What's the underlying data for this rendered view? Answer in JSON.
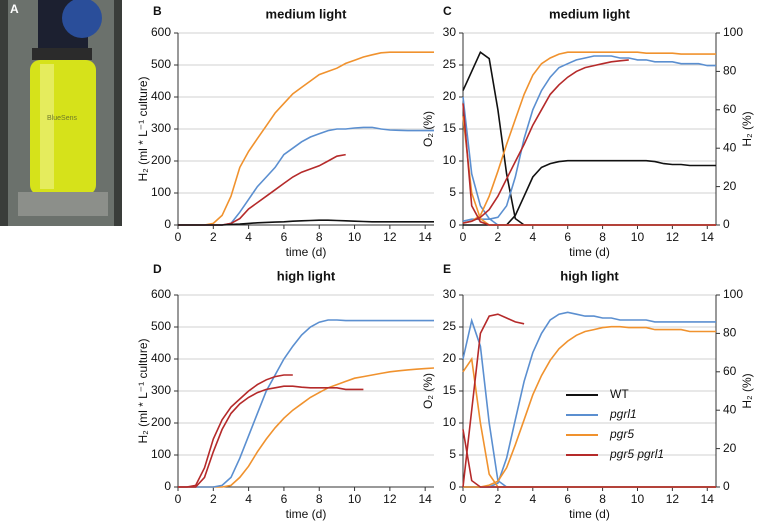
{
  "panel_a": {
    "label": "A",
    "photo_text": "BlueSens"
  },
  "chart_data": [
    {
      "type": "line",
      "label": "B",
      "title": "medium light",
      "xlabel": "time (d)",
      "ylabel": "H₂ (ml * L⁻¹ culture)",
      "x": [
        0,
        0.5,
        1,
        1.5,
        2,
        2.5,
        3,
        3.5,
        4,
        4.5,
        5,
        5.5,
        6,
        6.5,
        7,
        7.5,
        8,
        8.5,
        9,
        9.5,
        10,
        10.5,
        11,
        11.5,
        12,
        12.5,
        13,
        13.5,
        14,
        14.5
      ],
      "xlim": [
        0,
        14.5
      ],
      "xticks": [
        0,
        2,
        4,
        6,
        8,
        10,
        12,
        14
      ],
      "ylim": [
        0,
        600
      ],
      "yticks": [
        0,
        100,
        200,
        300,
        400,
        500,
        600
      ],
      "grid": true,
      "series": [
        {
          "color": "#f0922e",
          "values": [
            0,
            0,
            0,
            0,
            5,
            30,
            90,
            180,
            230,
            270,
            310,
            350,
            380,
            410,
            430,
            450,
            470,
            480,
            490,
            505,
            515,
            525,
            532,
            538,
            540,
            540,
            540,
            540,
            540,
            540
          ]
        },
        {
          "color": "#5b8fd0",
          "values": [
            0,
            0,
            0,
            0,
            0,
            0,
            5,
            40,
            80,
            120,
            150,
            180,
            220,
            240,
            260,
            275,
            285,
            295,
            300,
            300,
            303,
            305,
            305,
            300,
            297,
            296,
            295,
            295,
            295,
            295
          ]
        },
        {
          "color": "#b52a2a",
          "values": [
            0,
            0,
            0,
            0,
            0,
            0,
            5,
            20,
            50,
            70,
            90,
            110,
            130,
            150,
            165,
            175,
            185,
            200,
            215,
            220,
            null,
            null,
            null,
            null,
            null,
            null,
            null,
            null,
            null,
            null
          ]
        },
        {
          "color": "#111111",
          "values": [
            0,
            0,
            0,
            0,
            0,
            0,
            2,
            3,
            5,
            7,
            8,
            9,
            10,
            12,
            13,
            14,
            15,
            15,
            14,
            13,
            12,
            11,
            10,
            10,
            10,
            10,
            10,
            10,
            10,
            10
          ]
        }
      ]
    },
    {
      "type": "line",
      "label": "C",
      "title": "medium light",
      "xlabel": "time (d)",
      "ylabel": "O₂ (%)",
      "y2label": "H₂ (%)",
      "x": [
        0,
        0.5,
        1,
        1.5,
        2,
        2.5,
        3,
        3.5,
        4,
        4.5,
        5,
        5.5,
        6,
        6.5,
        7,
        7.5,
        8,
        8.5,
        9,
        9.5,
        10,
        10.5,
        11,
        11.5,
        12,
        12.5,
        13,
        13.5,
        14,
        14.5
      ],
      "xlim": [
        0,
        14.5
      ],
      "xticks": [
        0,
        2,
        4,
        6,
        8,
        10,
        12,
        14
      ],
      "ylim": [
        0,
        30
      ],
      "yticks": [
        0,
        5,
        10,
        15,
        20,
        25,
        30
      ],
      "y2lim": [
        0,
        100
      ],
      "y2ticks": [
        0,
        20,
        40,
        60,
        80,
        100
      ],
      "grid": true,
      "series": [
        {
          "color": "#111111",
          "values": [
            21,
            24,
            27,
            26,
            18,
            8,
            1,
            0,
            0,
            0,
            0,
            0,
            0,
            0,
            0,
            0,
            0,
            0,
            0,
            0,
            0,
            0,
            0,
            0,
            0,
            0,
            0,
            0,
            0,
            0
          ]
        },
        {
          "color": "#111111",
          "axis": "y2",
          "values": [
            0,
            0,
            0,
            0,
            0,
            0,
            5,
            15,
            25,
            30,
            32,
            33,
            33.5,
            33.5,
            33.5,
            33.5,
            33.5,
            33.5,
            33.5,
            33.5,
            33.5,
            33.5,
            33,
            32,
            31.5,
            31.5,
            31,
            31,
            31,
            31
          ]
        },
        {
          "color": "#5b8fd0",
          "values": [
            20,
            8,
            3,
            1,
            0,
            0,
            0,
            0,
            0,
            0,
            0,
            0,
            0,
            0,
            0,
            0,
            0,
            0,
            0,
            0,
            0,
            0,
            0,
            0,
            0,
            0,
            0,
            0,
            0,
            0
          ]
        },
        {
          "color": "#5b8fd0",
          "axis": "y2",
          "values": [
            2,
            3,
            3,
            3,
            4,
            10,
            25,
            45,
            60,
            70,
            77,
            82,
            84,
            86,
            87,
            88,
            88,
            88,
            87,
            87,
            86,
            86,
            85,
            85,
            85,
            84,
            84,
            84,
            83,
            83
          ]
        },
        {
          "color": "#f0922e",
          "values": [
            17,
            5,
            1,
            0,
            0,
            0,
            0,
            0,
            0,
            0,
            0,
            0,
            0,
            0,
            0,
            0,
            0,
            0,
            0,
            0,
            0,
            0,
            0,
            0,
            0,
            0,
            0,
            0,
            0,
            0
          ]
        },
        {
          "color": "#f0922e",
          "axis": "y2",
          "values": [
            1,
            2,
            5,
            15,
            28,
            42,
            55,
            68,
            78,
            84,
            87,
            89,
            90,
            90,
            90,
            90,
            90,
            90,
            90,
            90,
            90,
            89.5,
            89.5,
            89.5,
            89.5,
            89,
            89,
            89,
            89,
            89
          ]
        },
        {
          "color": "#b52a2a",
          "values": [
            19,
            3,
            0.5,
            0,
            0,
            0,
            0,
            0,
            0,
            0,
            0,
            0,
            0,
            0,
            0,
            0,
            0,
            0,
            0,
            0,
            0,
            0,
            0,
            0,
            0,
            0,
            0,
            0,
            0,
            0
          ]
        },
        {
          "color": "#b52a2a",
          "axis": "y2",
          "values": [
            1,
            2,
            4,
            8,
            15,
            24,
            33,
            42,
            52,
            60,
            68,
            73,
            77,
            80,
            82,
            83,
            84,
            85,
            85.5,
            86,
            null,
            null,
            null,
            null,
            null,
            null,
            null,
            null,
            null,
            null
          ]
        }
      ]
    },
    {
      "type": "line",
      "label": "D",
      "title": "high light",
      "xlabel": "time (d)",
      "ylabel": "H₂ (ml * L⁻¹ culture)",
      "x": [
        0,
        0.5,
        1,
        1.5,
        2,
        2.5,
        3,
        3.5,
        4,
        4.5,
        5,
        5.5,
        6,
        6.5,
        7,
        7.5,
        8,
        8.5,
        9,
        9.5,
        10,
        10.5,
        11,
        11.5,
        12,
        12.5,
        13,
        13.5,
        14,
        14.5
      ],
      "xlim": [
        0,
        14.5
      ],
      "xticks": [
        0,
        2,
        4,
        6,
        8,
        10,
        12,
        14
      ],
      "ylim": [
        0,
        600
      ],
      "yticks": [
        0,
        100,
        200,
        300,
        400,
        500,
        600
      ],
      "grid": true,
      "series": [
        {
          "color": "#f0922e",
          "values": [
            0,
            0,
            0,
            0,
            0,
            0,
            5,
            30,
            65,
            110,
            150,
            185,
            215,
            240,
            260,
            280,
            295,
            310,
            320,
            330,
            340,
            345,
            350,
            355,
            360,
            363,
            366,
            368,
            370,
            372
          ]
        },
        {
          "color": "#5b8fd0",
          "values": [
            0,
            0,
            0,
            0,
            0,
            5,
            30,
            90,
            160,
            230,
            300,
            350,
            400,
            440,
            475,
            500,
            515,
            522,
            522,
            520,
            520,
            520,
            520,
            520,
            520,
            520,
            520,
            520,
            520,
            520
          ]
        },
        {
          "color": "#b52a2a",
          "values": [
            0,
            0,
            5,
            60,
            150,
            210,
            250,
            275,
            300,
            320,
            335,
            345,
            350,
            350,
            null,
            null,
            null,
            null,
            null,
            null,
            null,
            null,
            null,
            null,
            null,
            null,
            null,
            null,
            null,
            null
          ]
        },
        {
          "color": "#b52a2a",
          "values": [
            0,
            0,
            0,
            30,
            110,
            180,
            230,
            260,
            280,
            295,
            305,
            310,
            315,
            315,
            312,
            310,
            310,
            310,
            310,
            305,
            305,
            305,
            null,
            null,
            null,
            null,
            null,
            null,
            null,
            null
          ]
        }
      ]
    },
    {
      "type": "line",
      "label": "E",
      "title": "high light",
      "xlabel": "time (d)",
      "ylabel": "O₂ (%)",
      "y2label": "H₂ (%)",
      "x": [
        0,
        0.5,
        1,
        1.5,
        2,
        2.5,
        3,
        3.5,
        4,
        4.5,
        5,
        5.5,
        6,
        6.5,
        7,
        7.5,
        8,
        8.5,
        9,
        9.5,
        10,
        10.5,
        11,
        11.5,
        12,
        12.5,
        13,
        13.5,
        14,
        14.5
      ],
      "xlim": [
        0,
        14.5
      ],
      "xticks": [
        0,
        2,
        4,
        6,
        8,
        10,
        12,
        14
      ],
      "ylim": [
        0,
        30
      ],
      "yticks": [
        0,
        5,
        10,
        15,
        20,
        25,
        30
      ],
      "y2lim": [
        0,
        100
      ],
      "y2ticks": [
        0,
        20,
        40,
        60,
        80,
        100
      ],
      "grid": true,
      "legend": "lower right",
      "series": [
        {
          "name": "WT",
          "color": "#111111",
          "values": [
            0,
            0,
            0,
            0,
            0,
            0,
            0,
            0,
            0,
            0,
            0,
            0,
            0,
            0,
            0,
            0,
            0,
            0,
            0,
            0,
            0,
            0,
            0,
            0,
            0,
            0,
            0,
            0,
            0,
            0
          ]
        },
        {
          "name": "pgrl1",
          "color": "#5b8fd0",
          "values": [
            20,
            26,
            22,
            10,
            1,
            0,
            0,
            0,
            0,
            0,
            0,
            0,
            0,
            0,
            0,
            0,
            0,
            0,
            0,
            0,
            0,
            0,
            0,
            0,
            0,
            0,
            0,
            0,
            0,
            0
          ]
        },
        {
          "color": "#5b8fd0",
          "axis": "y2",
          "values": [
            0,
            0,
            0,
            0,
            2,
            15,
            35,
            55,
            70,
            80,
            87,
            90,
            91,
            90,
            89,
            89,
            88,
            88,
            87,
            87,
            87,
            87,
            86,
            86,
            86,
            86,
            86,
            86,
            86,
            86
          ]
        },
        {
          "name": "pgr5",
          "color": "#f0922e",
          "values": [
            18,
            20,
            10,
            2,
            0,
            0,
            0,
            0,
            0,
            0,
            0,
            0,
            0,
            0,
            0,
            0,
            0,
            0,
            0,
            0,
            0,
            0,
            0,
            0,
            0,
            0,
            0,
            0,
            0,
            0
          ]
        },
        {
          "color": "#f0922e",
          "axis": "y2",
          "values": [
            0,
            0,
            0,
            1,
            3,
            10,
            22,
            35,
            48,
            58,
            66,
            72,
            76,
            79,
            81,
            82,
            83,
            83.5,
            83.5,
            83,
            83,
            83,
            82,
            82,
            82,
            82,
            81,
            81,
            81,
            81
          ]
        },
        {
          "name": "pgr5 pgrl1",
          "color": "#b52a2a",
          "values": [
            9,
            1,
            0,
            0,
            0,
            0,
            0,
            0,
            0,
            0,
            0,
            0,
            0,
            0,
            0,
            0,
            0,
            0,
            0,
            0,
            0,
            0,
            0,
            0,
            0,
            0,
            0,
            0,
            0,
            0
          ]
        },
        {
          "color": "#b52a2a",
          "axis": "y2",
          "values": [
            0,
            40,
            80,
            89,
            90,
            88,
            86,
            85,
            null,
            null,
            null,
            null,
            null,
            null,
            null,
            null,
            null,
            null,
            null,
            null,
            null,
            null,
            null,
            null,
            null,
            null,
            null,
            null,
            null,
            null
          ]
        }
      ]
    }
  ]
}
